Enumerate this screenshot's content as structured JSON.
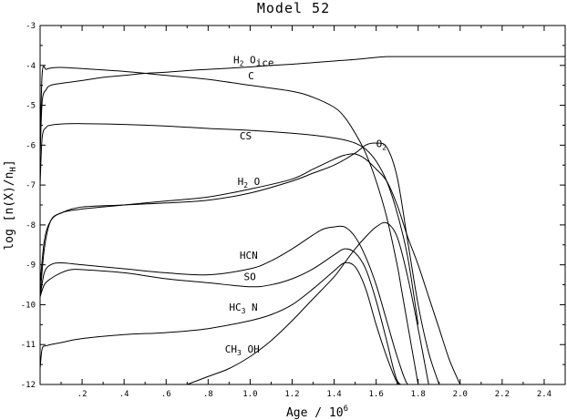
{
  "chart_data": {
    "type": "line",
    "title": "Model 52",
    "xlabel_main": "Age / 10",
    "xlabel_sup": "6",
    "ylabel_main": "log [n(X)/n",
    "ylabel_sub": "H",
    "ylabel_end": "]",
    "xlim": [
      0.0,
      2.5
    ],
    "ylim": [
      -12,
      -3
    ],
    "x_ticks": [
      0.2,
      0.4,
      0.6,
      0.8,
      1.0,
      1.2,
      1.4,
      1.6,
      1.8,
      2.0,
      2.2,
      2.4
    ],
    "x_tick_labels": [
      ".2",
      ".4",
      ".6",
      ".8",
      "1.0",
      "1.2",
      "1.4",
      "1.6",
      "1.8",
      "2.0",
      "2.2",
      "2.4"
    ],
    "y_ticks": [
      -3,
      -4,
      -5,
      -6,
      -7,
      -8,
      -9,
      -10,
      -11,
      -12
    ],
    "y_tick_labels": [
      "-3",
      "-4",
      "-5",
      "-6",
      "-7",
      "-8",
      "-9",
      "-10",
      "-11",
      "-12"
    ],
    "grid": false,
    "series": [
      {
        "name": "H2Oice",
        "label": {
          "main": "H",
          "sub": "2",
          "main2": " O",
          "sub2": "ice",
          "at": [
            0.92,
            -3.95
          ]
        },
        "x": [
          0.0,
          0.01,
          0.03,
          0.05,
          0.1,
          0.2,
          0.3,
          0.4,
          0.5,
          0.6,
          0.7,
          0.8,
          0.9,
          1.0,
          1.1,
          1.2,
          1.3,
          1.4,
          1.5,
          1.6,
          1.65,
          1.7,
          2.0,
          2.3,
          2.5
        ],
        "y": [
          -6.3,
          -4.9,
          -4.6,
          -4.5,
          -4.45,
          -4.38,
          -4.3,
          -4.25,
          -4.2,
          -4.17,
          -4.13,
          -4.1,
          -4.07,
          -4.04,
          -4.0,
          -3.97,
          -3.93,
          -3.89,
          -3.85,
          -3.8,
          -3.78,
          -3.78,
          -3.78,
          -3.78,
          -3.78
        ]
      },
      {
        "name": "C",
        "label": {
          "main": "C",
          "at": [
            0.99,
            -4.35
          ]
        },
        "x": [
          0.0,
          0.01,
          0.03,
          0.06,
          0.1,
          0.2,
          0.4,
          0.6,
          0.8,
          1.0,
          1.2,
          1.3,
          1.4,
          1.45,
          1.5,
          1.55,
          1.6,
          1.65,
          1.7,
          1.72,
          1.75,
          1.8
        ],
        "y": [
          -6.2,
          -4.2,
          -4.1,
          -4.06,
          -4.05,
          -4.08,
          -4.15,
          -4.25,
          -4.35,
          -4.5,
          -4.65,
          -4.8,
          -5.05,
          -5.3,
          -5.7,
          -6.2,
          -6.9,
          -7.8,
          -9.0,
          -9.6,
          -10.5,
          -12.0
        ]
      },
      {
        "name": "CS",
        "label": {
          "main": "CS",
          "at": [
            0.95,
            -5.85
          ]
        },
        "x": [
          0.0,
          0.01,
          0.03,
          0.05,
          0.1,
          0.2,
          0.4,
          0.6,
          0.8,
          1.0,
          1.2,
          1.3,
          1.4,
          1.45,
          1.5,
          1.55,
          1.6,
          1.65,
          1.7,
          1.75,
          1.8
        ],
        "y": [
          -7.0,
          -5.8,
          -5.55,
          -5.5,
          -5.47,
          -5.46,
          -5.48,
          -5.52,
          -5.58,
          -5.63,
          -5.7,
          -5.75,
          -5.82,
          -5.87,
          -5.95,
          -6.1,
          -6.4,
          -6.9,
          -7.7,
          -8.8,
          -10.5
        ]
      },
      {
        "name": "O2",
        "label": {
          "main": "O",
          "sub": "2",
          "at": [
            1.6,
            -6.05
          ]
        },
        "x": [
          0.0,
          0.02,
          0.05,
          0.1,
          0.2,
          0.4,
          0.6,
          0.8,
          1.0,
          1.2,
          1.3,
          1.4,
          1.5,
          1.55,
          1.6,
          1.65,
          1.7,
          1.75,
          1.8,
          1.85,
          1.9
        ],
        "y": [
          -9.8,
          -8.6,
          -7.9,
          -7.7,
          -7.55,
          -7.5,
          -7.45,
          -7.38,
          -7.2,
          -6.9,
          -6.7,
          -6.5,
          -6.2,
          -6.0,
          -5.95,
          -6.05,
          -6.8,
          -8.4,
          -10.0,
          -11.2,
          -12.0
        ]
      },
      {
        "name": "H2O",
        "label": {
          "main": "H",
          "sub": "2",
          "main2": " O",
          "at": [
            0.94,
            -7.0
          ]
        },
        "x": [
          0.0,
          0.02,
          0.05,
          0.1,
          0.2,
          0.4,
          0.6,
          0.8,
          1.0,
          1.2,
          1.3,
          1.4,
          1.45,
          1.5,
          1.55,
          1.6,
          1.65,
          1.7,
          1.75,
          1.8,
          1.85,
          1.9,
          1.95,
          2.0
        ],
        "y": [
          -9.5,
          -8.4,
          -7.9,
          -7.7,
          -7.6,
          -7.5,
          -7.4,
          -7.3,
          -7.1,
          -6.85,
          -6.6,
          -6.35,
          -6.25,
          -6.22,
          -6.35,
          -6.6,
          -6.9,
          -7.5,
          -8.3,
          -9.0,
          -9.8,
          -10.6,
          -11.4,
          -12.0
        ]
      },
      {
        "name": "HCN",
        "label": {
          "main": "HCN",
          "at": [
            0.95,
            -8.85
          ]
        },
        "x": [
          0.0,
          0.02,
          0.05,
          0.1,
          0.2,
          0.4,
          0.6,
          0.8,
          1.0,
          1.1,
          1.2,
          1.3,
          1.35,
          1.4,
          1.45,
          1.5,
          1.55,
          1.6,
          1.65,
          1.7,
          1.75,
          1.8
        ],
        "y": [
          -9.8,
          -9.2,
          -9.0,
          -8.95,
          -9.0,
          -9.1,
          -9.2,
          -9.25,
          -9.1,
          -8.9,
          -8.6,
          -8.25,
          -8.1,
          -8.05,
          -8.05,
          -8.3,
          -8.8,
          -9.5,
          -10.4,
          -11.3,
          -12.0,
          -12.0
        ]
      },
      {
        "name": "SO",
        "label": {
          "main": "SO",
          "at": [
            0.97,
            -9.38
          ]
        },
        "x": [
          0.0,
          0.02,
          0.05,
          0.1,
          0.15,
          0.2,
          0.4,
          0.6,
          0.8,
          1.0,
          1.1,
          1.2,
          1.3,
          1.4,
          1.45,
          1.5,
          1.55,
          1.6,
          1.65,
          1.7,
          1.75
        ],
        "y": [
          -9.8,
          -9.5,
          -9.35,
          -9.2,
          -9.12,
          -9.12,
          -9.2,
          -9.35,
          -9.45,
          -9.55,
          -9.5,
          -9.35,
          -9.1,
          -8.75,
          -8.6,
          -8.7,
          -9.1,
          -9.9,
          -10.9,
          -11.9,
          -12.0
        ]
      },
      {
        "name": "HC3N",
        "label": {
          "main": "HC",
          "sub": "3",
          "main2": " N",
          "at": [
            0.9,
            -10.15
          ]
        },
        "x": [
          0.0,
          0.01,
          0.03,
          0.05,
          0.1,
          0.2,
          0.4,
          0.6,
          0.8,
          1.0,
          1.1,
          1.2,
          1.3,
          1.4,
          1.45,
          1.5,
          1.55,
          1.6,
          1.65,
          1.7,
          1.73
        ],
        "y": [
          -11.6,
          -11.1,
          -11.03,
          -11.0,
          -10.95,
          -10.85,
          -10.75,
          -10.7,
          -10.6,
          -10.4,
          -10.25,
          -10.0,
          -9.6,
          -9.15,
          -8.95,
          -9.05,
          -9.6,
          -10.5,
          -11.3,
          -11.95,
          -12.0
        ]
      },
      {
        "name": "CH3OH",
        "label": {
          "main": "CH",
          "sub": "3",
          "main2": " OH",
          "at": [
            0.88,
            -11.2
          ]
        },
        "x": [
          0.7,
          0.8,
          0.9,
          1.0,
          1.1,
          1.2,
          1.3,
          1.4,
          1.45,
          1.5,
          1.55,
          1.6,
          1.65,
          1.7,
          1.75,
          1.8,
          1.85
        ],
        "y": [
          -12.0,
          -11.8,
          -11.6,
          -11.3,
          -10.9,
          -10.4,
          -9.85,
          -9.3,
          -8.95,
          -8.6,
          -8.3,
          -8.05,
          -7.95,
          -8.3,
          -9.3,
          -10.6,
          -12.0
        ]
      }
    ]
  }
}
